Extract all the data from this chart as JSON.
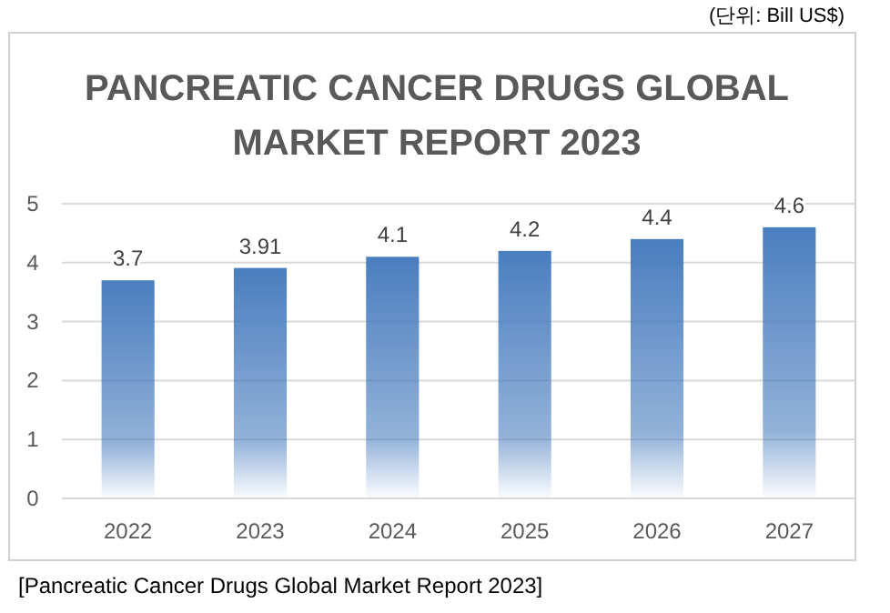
{
  "chart_data": {
    "type": "bar",
    "title": "PANCREATIC CANCER DRUGS GLOBAL MARKET REPORT 2023",
    "categories": [
      "2022",
      "2023",
      "2024",
      "2025",
      "2026",
      "2027"
    ],
    "values": [
      3.7,
      3.91,
      4.1,
      4.2,
      4.4,
      4.6
    ],
    "color": "#4a7ebf",
    "ylim": [
      0,
      5
    ],
    "yticks": [
      0,
      1,
      2,
      3,
      4,
      5
    ],
    "grid": "y",
    "data_labels": true,
    "annotations": [
      "(단위: Bill US$)",
      "[Pancreatic Cancer Drugs Global Market Report 2023]"
    ]
  }
}
